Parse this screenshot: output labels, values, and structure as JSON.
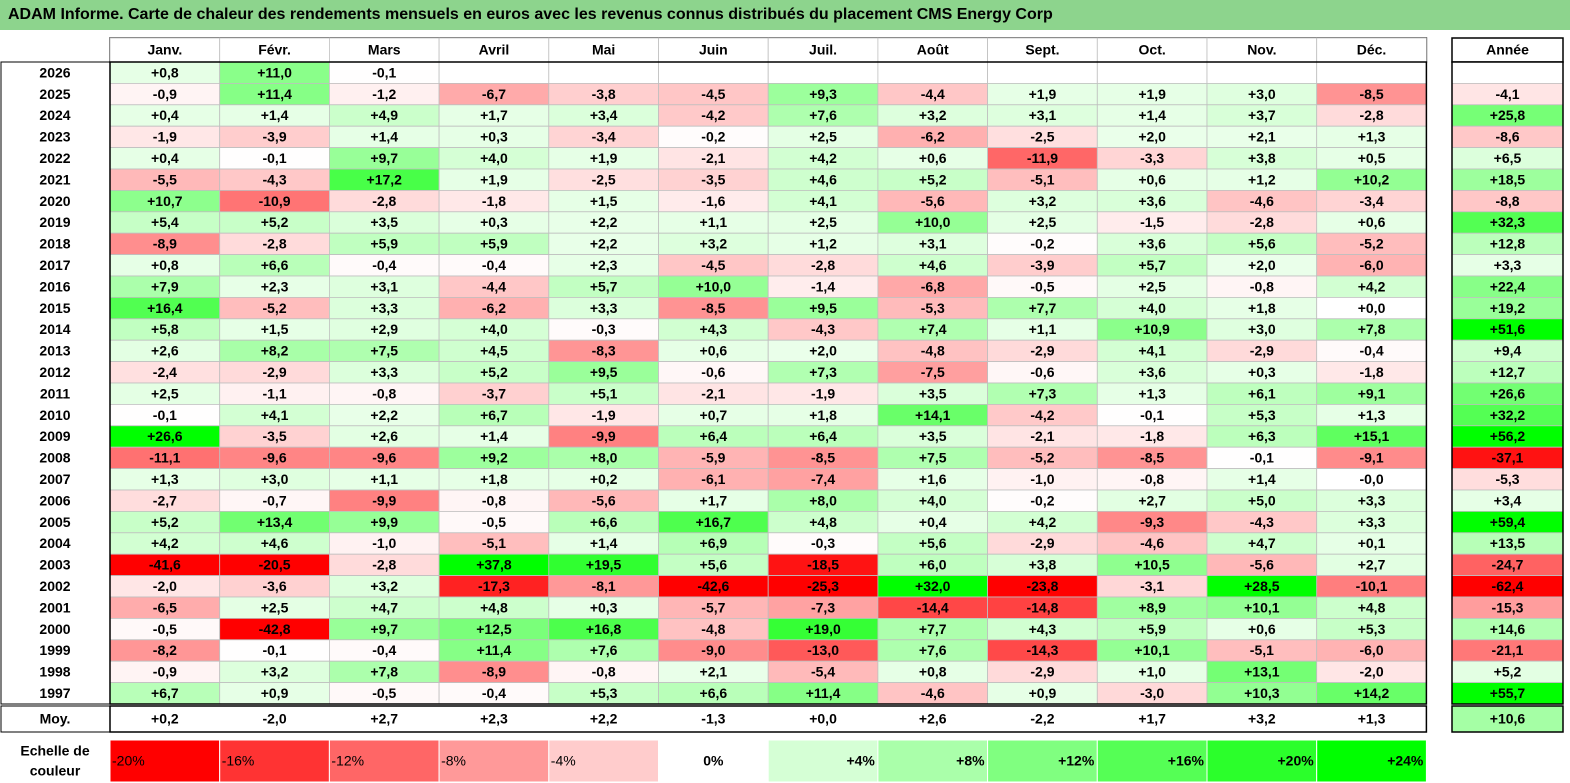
{
  "title": "ADAM Informe. Carte de chaleur des rendements mensuels en euros avec les revenus connus distribués du placement CMS Energy Corp",
  "colors": {
    "title_bg": "#8dd48d",
    "positive_max": "#00ff00",
    "negative_max": "#ff0000",
    "neutral": "#ffffff"
  },
  "chart_data": {
    "type": "heatmap",
    "title": "ADAM Informe. Carte de chaleur des rendements mensuels en euros avec les revenus connus distribués du placement CMS Energy Corp",
    "months": [
      "Janv.",
      "Févr.",
      "Mars",
      "Avril",
      "Mai",
      "Juin",
      "Juil.",
      "Août",
      "Sept.",
      "Oct.",
      "Nov.",
      "Déc."
    ],
    "year_header": "Année",
    "rows": [
      {
        "year": "2026",
        "values": [
          "+0,8",
          "+11,0",
          "-0,1",
          "",
          "",
          "",
          "",
          "",
          "",
          "",
          "",
          ""
        ],
        "annual": ""
      },
      {
        "year": "2025",
        "values": [
          "-0,9",
          "+11,4",
          "-1,2",
          "-6,7",
          "-3,8",
          "-4,5",
          "+9,3",
          "-4,4",
          "+1,9",
          "+1,9",
          "+3,0",
          "-8,5"
        ],
        "annual": "-4,1"
      },
      {
        "year": "2024",
        "values": [
          "+0,4",
          "+1,4",
          "+4,9",
          "+1,7",
          "+3,4",
          "-4,2",
          "+7,6",
          "+3,2",
          "+3,1",
          "+1,4",
          "+3,7",
          "-2,8"
        ],
        "annual": "+25,8"
      },
      {
        "year": "2023",
        "values": [
          "-1,9",
          "-3,9",
          "+1,4",
          "+0,3",
          "-3,4",
          "-0,2",
          "+2,5",
          "-6,2",
          "-2,5",
          "+2,0",
          "+2,1",
          "+1,3"
        ],
        "annual": "-8,6"
      },
      {
        "year": "2022",
        "values": [
          "+0,4",
          "-0,1",
          "+9,7",
          "+4,0",
          "+1,9",
          "-2,1",
          "+4,2",
          "+0,6",
          "-11,9",
          "-3,3",
          "+3,8",
          "+0,5"
        ],
        "annual": "+6,5"
      },
      {
        "year": "2021",
        "values": [
          "-5,5",
          "-4,3",
          "+17,2",
          "+1,9",
          "-2,5",
          "-3,5",
          "+4,6",
          "+5,2",
          "-5,1",
          "+0,6",
          "+1,2",
          "+10,2"
        ],
        "annual": "+18,5"
      },
      {
        "year": "2020",
        "values": [
          "+10,7",
          "-10,9",
          "-2,8",
          "-1,8",
          "+1,5",
          "-1,6",
          "+4,1",
          "-5,6",
          "+3,2",
          "+3,6",
          "-4,6",
          "-3,4"
        ],
        "annual": "-8,8"
      },
      {
        "year": "2019",
        "values": [
          "+5,4",
          "+5,2",
          "+3,5",
          "+0,3",
          "+2,2",
          "+1,1",
          "+2,5",
          "+10,0",
          "+2,5",
          "-1,5",
          "-2,8",
          "+0,6"
        ],
        "annual": "+32,3"
      },
      {
        "year": "2018",
        "values": [
          "-8,9",
          "-2,8",
          "+5,9",
          "+5,9",
          "+2,2",
          "+3,2",
          "+1,2",
          "+3,1",
          "-0,2",
          "+3,6",
          "+5,6",
          "-5,2"
        ],
        "annual": "+12,8"
      },
      {
        "year": "2017",
        "values": [
          "+0,8",
          "+6,6",
          "-0,4",
          "-0,4",
          "+2,3",
          "-4,5",
          "-2,8",
          "+4,6",
          "-3,9",
          "+5,7",
          "+2,0",
          "-6,0"
        ],
        "annual": "+3,3"
      },
      {
        "year": "2016",
        "values": [
          "+7,9",
          "+2,3",
          "+3,1",
          "-4,4",
          "+5,7",
          "+10,0",
          "-1,4",
          "-6,8",
          "-0,5",
          "+2,5",
          "-0,8",
          "+4,2"
        ],
        "annual": "+22,4"
      },
      {
        "year": "2015",
        "values": [
          "+16,4",
          "-5,2",
          "+3,3",
          "-6,2",
          "+3,3",
          "-8,5",
          "+9,5",
          "-5,3",
          "+7,7",
          "+4,0",
          "+1,8",
          "+0,0"
        ],
        "annual": "+19,2"
      },
      {
        "year": "2014",
        "values": [
          "+5,8",
          "+1,5",
          "+2,9",
          "+4,0",
          "-0,3",
          "+4,3",
          "-4,3",
          "+7,4",
          "+1,1",
          "+10,9",
          "+3,0",
          "+7,8"
        ],
        "annual": "+51,6"
      },
      {
        "year": "2013",
        "values": [
          "+2,6",
          "+8,2",
          "+7,5",
          "+4,5",
          "-8,3",
          "+0,6",
          "+2,0",
          "-4,8",
          "-2,9",
          "+4,1",
          "-2,9",
          "-0,4"
        ],
        "annual": "+9,4"
      },
      {
        "year": "2012",
        "values": [
          "-2,4",
          "-2,9",
          "+3,3",
          "+5,2",
          "+9,5",
          "-0,6",
          "+7,3",
          "-7,5",
          "-0,6",
          "+3,6",
          "+0,3",
          "-1,8"
        ],
        "annual": "+12,7"
      },
      {
        "year": "2011",
        "values": [
          "+2,5",
          "-1,1",
          "-0,8",
          "-3,7",
          "+5,1",
          "-2,1",
          "-1,9",
          "+3,5",
          "+7,3",
          "+1,3",
          "+6,1",
          "+9,1"
        ],
        "annual": "+26,6"
      },
      {
        "year": "2010",
        "values": [
          "-0,1",
          "+4,1",
          "+2,2",
          "+6,7",
          "-1,9",
          "+0,7",
          "+1,8",
          "+14,1",
          "-4,2",
          "-0,1",
          "+5,3",
          "+1,3"
        ],
        "annual": "+32,2"
      },
      {
        "year": "2009",
        "values": [
          "+26,6",
          "-3,5",
          "+2,6",
          "+1,4",
          "-9,9",
          "+6,4",
          "+6,4",
          "+3,5",
          "-2,1",
          "-1,8",
          "+6,3",
          "+15,1"
        ],
        "annual": "+56,2"
      },
      {
        "year": "2008",
        "values": [
          "-11,1",
          "-9,6",
          "-9,6",
          "+9,2",
          "+8,0",
          "-5,9",
          "-8,5",
          "+7,5",
          "-5,2",
          "-8,5",
          "-0,1",
          "-9,1"
        ],
        "annual": "-37,1"
      },
      {
        "year": "2007",
        "values": [
          "+1,3",
          "+3,0",
          "+1,1",
          "+1,8",
          "+0,2",
          "-6,1",
          "-7,4",
          "+1,6",
          "-1,0",
          "-0,8",
          "+1,4",
          "-0,0"
        ],
        "annual": "-5,3"
      },
      {
        "year": "2006",
        "values": [
          "-2,7",
          "-0,7",
          "-9,9",
          "-0,8",
          "-5,6",
          "+1,7",
          "+8,0",
          "+4,0",
          "-0,2",
          "+2,7",
          "+5,0",
          "+3,3"
        ],
        "annual": "+3,4"
      },
      {
        "year": "2005",
        "values": [
          "+5,2",
          "+13,4",
          "+9,9",
          "-0,5",
          "+6,6",
          "+16,7",
          "+4,8",
          "+0,4",
          "+4,2",
          "-9,3",
          "-4,3",
          "+3,3"
        ],
        "annual": "+59,4"
      },
      {
        "year": "2004",
        "values": [
          "+4,2",
          "+4,6",
          "-1,0",
          "-5,1",
          "+1,4",
          "+6,9",
          "-0,3",
          "+5,6",
          "-2,9",
          "-4,6",
          "+4,7",
          "+0,1"
        ],
        "annual": "+13,5"
      },
      {
        "year": "2003",
        "values": [
          "-41,6",
          "-20,5",
          "-2,8",
          "+37,8",
          "+19,5",
          "+5,6",
          "-18,5",
          "+6,0",
          "+3,8",
          "+10,5",
          "-5,6",
          "+2,7"
        ],
        "annual": "-24,7"
      },
      {
        "year": "2002",
        "values": [
          "-2,0",
          "-3,6",
          "+3,2",
          "-17,3",
          "-8,1",
          "-42,6",
          "-25,3",
          "+32,0",
          "-23,8",
          "-3,1",
          "+28,5",
          "-10,1"
        ],
        "annual": "-62,4"
      },
      {
        "year": "2001",
        "values": [
          "-6,5",
          "+2,5",
          "+4,7",
          "+4,8",
          "+0,3",
          "-5,7",
          "-7,3",
          "-14,4",
          "-14,8",
          "+8,9",
          "+10,1",
          "+4,8"
        ],
        "annual": "-15,3"
      },
      {
        "year": "2000",
        "values": [
          "-0,5",
          "-42,8",
          "+9,7",
          "+12,5",
          "+16,8",
          "-4,8",
          "+19,0",
          "+7,7",
          "+4,3",
          "+5,9",
          "+0,6",
          "+5,3"
        ],
        "annual": "+14,6"
      },
      {
        "year": "1999",
        "values": [
          "-8,2",
          "-0,1",
          "-0,4",
          "+11,4",
          "+7,6",
          "-9,0",
          "-13,0",
          "+7,6",
          "-14,3",
          "+10,1",
          "-5,1",
          "-6,0"
        ],
        "annual": "-21,1"
      },
      {
        "year": "1998",
        "values": [
          "-0,9",
          "+3,2",
          "+7,8",
          "-8,9",
          "-0,8",
          "+2,1",
          "-5,4",
          "+0,8",
          "-2,9",
          "+1,0",
          "+13,1",
          "-2,0"
        ],
        "annual": "+5,2"
      },
      {
        "year": "1997",
        "values": [
          "+6,7",
          "+0,9",
          "-0,5",
          "-0,4",
          "+5,3",
          "+6,6",
          "+11,4",
          "-4,6",
          "+0,9",
          "-3,0",
          "+10,3",
          "+14,2"
        ],
        "annual": "+55,7"
      }
    ],
    "average": {
      "label": "Moy.",
      "values": [
        "+0,2",
        "-2,0",
        "+2,7",
        "+2,3",
        "+2,2",
        "-1,3",
        "+0,0",
        "+2,6",
        "-2,2",
        "+1,7",
        "+3,2",
        "+1,3"
      ],
      "annual": "+10,6"
    },
    "scale": {
      "label_line1": "Echelle de",
      "label_line2": "couleur",
      "labels": [
        "-20%",
        "-16%",
        "-12%",
        "-8%",
        "-4%",
        "0%",
        "+4%",
        "+8%",
        "+12%",
        "+16%",
        "+20%",
        "+24%"
      ],
      "values": [
        -20,
        -16,
        -12,
        -8,
        -4,
        0,
        4,
        8,
        12,
        16,
        20,
        24
      ]
    }
  }
}
